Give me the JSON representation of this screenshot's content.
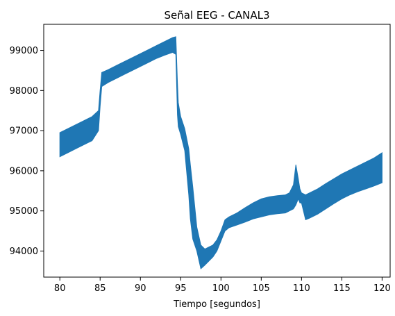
{
  "chart_data": {
    "type": "line",
    "title": "Señal EEG - CANAL3",
    "xlabel": "Tiempo [segundos]",
    "ylabel": "",
    "xlim": [
      78,
      121
    ],
    "ylim": [
      93350,
      99650
    ],
    "grid": false,
    "color": "#1f77b4",
    "x_ticks": [
      80,
      85,
      90,
      95,
      100,
      105,
      110,
      115,
      120
    ],
    "y_ticks": [
      94000,
      95000,
      96000,
      97000,
      98000,
      99000
    ],
    "series": [
      {
        "x": [
          80.0,
          81.0,
          82.0,
          83.0,
          84.0,
          84.8,
          85.0,
          85.2,
          86.0,
          87.0,
          88.0,
          89.0,
          90.0,
          91.0,
          92.0,
          93.0,
          94.0,
          94.4,
          94.6,
          94.7,
          95.0,
          95.5,
          96.0,
          96.2,
          96.5,
          97.0,
          97.5,
          98.0,
          98.5,
          99.0,
          99.5,
          100.0,
          100.5,
          101.0,
          102.0,
          103.0,
          104.0,
          105.0,
          106.0,
          107.0,
          108.0,
          108.5,
          109.0,
          109.3,
          109.6,
          109.8,
          110.0,
          110.5,
          111.0,
          112.0,
          113.0,
          114.0,
          115.0,
          116.0,
          117.0,
          118.0,
          119.0,
          120.0
        ],
        "lower": [
          96350,
          96450,
          96550,
          96650,
          96750,
          97000,
          97600,
          98100,
          98200,
          98300,
          98400,
          98500,
          98600,
          98700,
          98800,
          98880,
          98950,
          98900,
          97400,
          97100,
          96900,
          96500,
          95400,
          94800,
          94300,
          94000,
          93560,
          93650,
          93750,
          93850,
          94000,
          94250,
          94500,
          94580,
          94650,
          94720,
          94800,
          94850,
          94900,
          94930,
          94950,
          95000,
          95050,
          95150,
          95300,
          95200,
          95200,
          94780,
          94820,
          94920,
          95050,
          95180,
          95300,
          95400,
          95480,
          95550,
          95620,
          95700
        ],
        "upper": [
          96950,
          97050,
          97150,
          97250,
          97350,
          97500,
          98000,
          98450,
          98520,
          98620,
          98720,
          98820,
          98920,
          99020,
          99120,
          99220,
          99320,
          99340,
          98200,
          97700,
          97350,
          97050,
          96550,
          96150,
          95600,
          94600,
          94150,
          94050,
          94100,
          94150,
          94280,
          94500,
          94780,
          94850,
          94950,
          95080,
          95200,
          95300,
          95350,
          95380,
          95400,
          95450,
          95650,
          96150,
          95800,
          95550,
          95450,
          95400,
          95450,
          95550,
          95680,
          95800,
          95920,
          96020,
          96120,
          96220,
          96320,
          96450
        ]
      }
    ]
  }
}
